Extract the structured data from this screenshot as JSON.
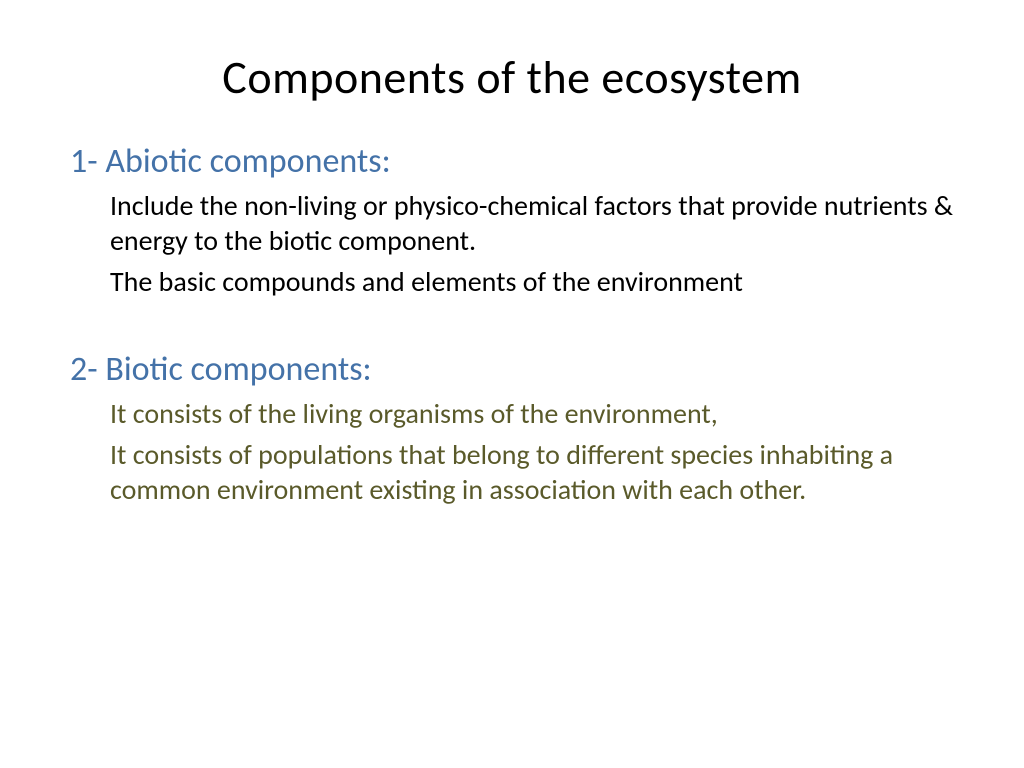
{
  "slide": {
    "title": "Components of the ecosystem",
    "section1": {
      "heading": "1- Abiotic components:",
      "para1": "Include the non-living or physico-chemical factors that provide nutrients & energy to the biotic component.",
      "para2": "The basic compounds and elements of the environment"
    },
    "section2": {
      "heading": "2- Biotic components:",
      "para1": "It consists of the living organisms of the environment,",
      "para2": "It  consists of populations that belong to different species inhabiting a common environment existing  in association with each other."
    }
  },
  "colors": {
    "title": "#000000",
    "heading": "#4472a8",
    "body_black": "#000000",
    "body_olive": "#5a5a2a",
    "background": "#ffffff"
  },
  "typography": {
    "title_fontsize": 46,
    "heading_fontsize": 34,
    "body_fontsize": 28,
    "font_family": "Calibri"
  }
}
